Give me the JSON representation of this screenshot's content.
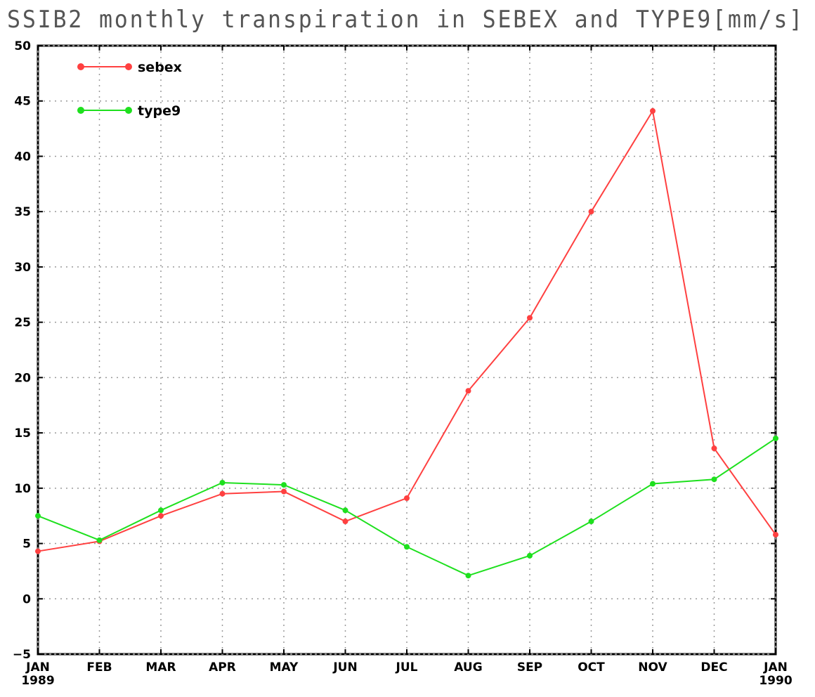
{
  "chart_data": {
    "type": "line",
    "title": "SSIB2 monthly transpiration in SEBEX and TYPE9[mm/s]",
    "x_tick_labels": [
      [
        "JAN",
        "1989"
      ],
      [
        "FEB"
      ],
      [
        "MAR"
      ],
      [
        "APR"
      ],
      [
        "MAY"
      ],
      [
        "JUN"
      ],
      [
        "JUL"
      ],
      [
        "AUG"
      ],
      [
        "SEP"
      ],
      [
        "OCT"
      ],
      [
        "NOV"
      ],
      [
        "DEC"
      ],
      [
        "JAN",
        "1990"
      ]
    ],
    "ylim": [
      -5,
      50
    ],
    "y_ticks": [
      -5,
      0,
      5,
      10,
      15,
      20,
      25,
      30,
      35,
      40,
      45,
      50
    ],
    "grid": true,
    "legend_position": "top-left",
    "series": [
      {
        "name": "sebex",
        "color": "#ff4040",
        "values": [
          4.3,
          5.2,
          7.5,
          9.5,
          9.7,
          7.0,
          9.1,
          18.8,
          25.4,
          35.0,
          44.1,
          13.6,
          5.8
        ]
      },
      {
        "name": "type9",
        "color": "#1ee01e",
        "values": [
          7.5,
          5.3,
          8.0,
          10.5,
          10.3,
          8.0,
          4.7,
          2.1,
          3.9,
          7.0,
          10.4,
          10.8,
          14.5
        ]
      }
    ]
  }
}
